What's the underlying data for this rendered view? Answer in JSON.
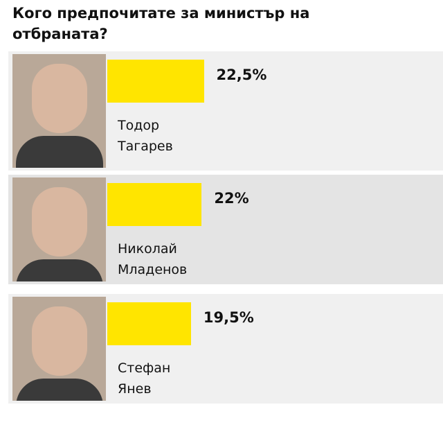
{
  "chart_data": {
    "type": "bar",
    "title": "Кого предпочитате за министър на отбраната?",
    "categories": [
      "Тодор Тагарев",
      "Николай Младенов",
      "Стефан Янев"
    ],
    "values": [
      22.5,
      22,
      19.5
    ],
    "value_labels": [
      "22,5%",
      "22%",
      "19,5%"
    ],
    "color": "#ffe500"
  }
}
